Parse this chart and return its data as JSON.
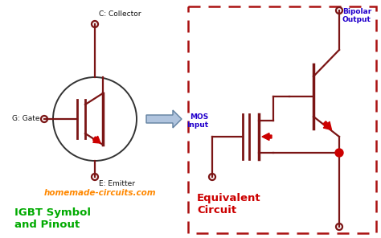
{
  "background_color": "#ffffff",
  "circuit_color": "#7b1515",
  "red_dot_color": "#cc0000",
  "arrow_fill": "#b0c4de",
  "arrow_edge": "#6080a0",
  "title_color": "#00aa00",
  "label_color": "#111111",
  "orange_color": "#ff8800",
  "blue_color": "#2200cc",
  "red_text_color": "#cc0000",
  "dashed_box_color": "#aa1111",
  "igbt_title": "IGBT Symbol\nand Pinout",
  "equiv_title": "Equivalent\nCircuit",
  "website": "homemade-circuits.com",
  "collector_label": "C: Collector",
  "gate_label": "G: Gate",
  "emitter_label": "E: Emitter",
  "bipolar_label": "Bipolar\nOutput",
  "mos_label": "MOS\nInput"
}
